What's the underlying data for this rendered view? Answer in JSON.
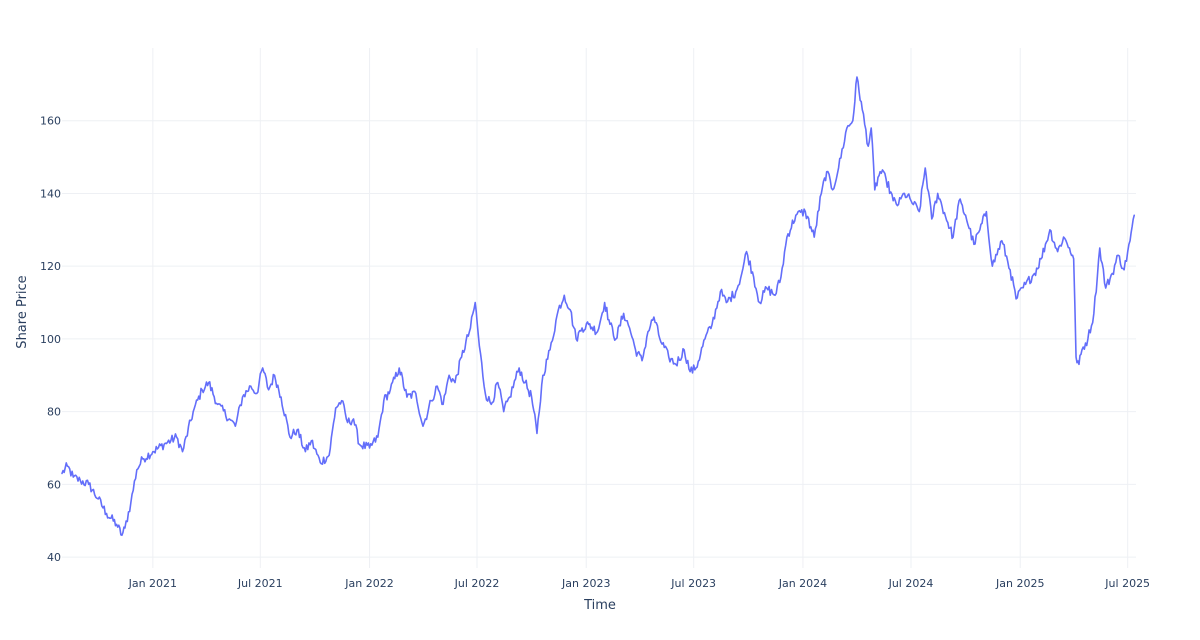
{
  "chart_data": {
    "type": "line",
    "title": "",
    "xlabel": "Time",
    "ylabel": "Share Price",
    "x_range": [
      "2020-08-01",
      "2025-07-15"
    ],
    "ylim": [
      37,
      180
    ],
    "grid": true,
    "legend": "none",
    "x_ticks": [
      {
        "date": "2021-01-01",
        "label": "Jan 2021"
      },
      {
        "date": "2021-07-01",
        "label": "Jul 2021"
      },
      {
        "date": "2022-01-01",
        "label": "Jan 2022"
      },
      {
        "date": "2022-07-01",
        "label": "Jul 2022"
      },
      {
        "date": "2023-01-01",
        "label": "Jan 2023"
      },
      {
        "date": "2023-07-01",
        "label": "Jul 2023"
      },
      {
        "date": "2024-01-01",
        "label": "Jan 2024"
      },
      {
        "date": "2024-07-01",
        "label": "Jul 2024"
      },
      {
        "date": "2025-01-01",
        "label": "Jan 2025"
      },
      {
        "date": "2025-07-01",
        "label": "Jul 2025"
      }
    ],
    "y_ticks": [
      {
        "value": 40,
        "label": "40"
      },
      {
        "value": 60,
        "label": "60"
      },
      {
        "value": 80,
        "label": "80"
      },
      {
        "value": 100,
        "label": "100"
      },
      {
        "value": 120,
        "label": "120"
      },
      {
        "value": 140,
        "label": "140"
      },
      {
        "value": 160,
        "label": "160"
      }
    ],
    "series": [
      {
        "color": "#636efa",
        "points": [
          [
            "2020-08-01",
            63
          ],
          [
            "2020-08-10",
            65
          ],
          [
            "2020-08-20",
            62
          ],
          [
            "2020-09-01",
            61
          ],
          [
            "2020-09-15",
            60
          ],
          [
            "2020-10-01",
            56
          ],
          [
            "2020-10-15",
            52
          ],
          [
            "2020-11-01",
            49
          ],
          [
            "2020-11-10",
            46
          ],
          [
            "2020-11-15",
            48
          ],
          [
            "2020-11-25",
            55
          ],
          [
            "2020-12-05",
            64
          ],
          [
            "2020-12-15",
            67
          ],
          [
            "2021-01-01",
            69
          ],
          [
            "2021-01-20",
            71
          ],
          [
            "2021-02-10",
            73
          ],
          [
            "2021-02-20",
            69
          ],
          [
            "2021-03-10",
            80
          ],
          [
            "2021-03-25",
            86
          ],
          [
            "2021-04-05",
            88
          ],
          [
            "2021-04-20",
            82
          ],
          [
            "2021-05-10",
            78
          ],
          [
            "2021-05-20",
            76
          ],
          [
            "2021-06-01",
            84
          ],
          [
            "2021-06-15",
            87
          ],
          [
            "2021-06-25",
            85
          ],
          [
            "2021-07-05",
            92
          ],
          [
            "2021-07-15",
            86
          ],
          [
            "2021-07-25",
            90
          ],
          [
            "2021-08-05",
            84
          ],
          [
            "2021-08-20",
            73
          ],
          [
            "2021-09-01",
            75
          ],
          [
            "2021-09-15",
            69
          ],
          [
            "2021-09-25",
            72
          ],
          [
            "2021-10-10",
            66
          ],
          [
            "2021-10-25",
            68
          ],
          [
            "2021-11-05",
            81
          ],
          [
            "2021-11-15",
            83
          ],
          [
            "2021-11-25",
            77
          ],
          [
            "2021-12-05",
            78
          ],
          [
            "2021-12-15",
            71
          ],
          [
            "2022-01-01",
            70
          ],
          [
            "2022-01-15",
            73
          ],
          [
            "2022-01-25",
            83
          ],
          [
            "2022-02-05",
            86
          ],
          [
            "2022-02-20",
            92
          ],
          [
            "2022-03-05",
            84
          ],
          [
            "2022-03-20",
            85
          ],
          [
            "2022-04-01",
            76
          ],
          [
            "2022-04-15",
            83
          ],
          [
            "2022-04-25",
            87
          ],
          [
            "2022-05-05",
            82
          ],
          [
            "2022-05-15",
            90
          ],
          [
            "2022-05-25",
            88
          ],
          [
            "2022-06-05",
            95
          ],
          [
            "2022-06-20",
            103
          ],
          [
            "2022-06-28",
            110
          ],
          [
            "2022-07-05",
            98
          ],
          [
            "2022-07-15",
            85
          ],
          [
            "2022-07-25",
            82
          ],
          [
            "2022-08-05",
            88
          ],
          [
            "2022-08-15",
            80
          ],
          [
            "2022-08-25",
            84
          ],
          [
            "2022-09-10",
            92
          ],
          [
            "2022-09-20",
            88
          ],
          [
            "2022-10-01",
            84
          ],
          [
            "2022-10-10",
            74
          ],
          [
            "2022-10-20",
            90
          ],
          [
            "2022-11-01",
            97
          ],
          [
            "2022-11-15",
            108
          ],
          [
            "2022-11-25",
            112
          ],
          [
            "2022-12-05",
            108
          ],
          [
            "2022-12-15",
            100
          ],
          [
            "2022-12-25",
            103
          ],
          [
            "2023-01-05",
            104
          ],
          [
            "2023-01-20",
            102
          ],
          [
            "2023-02-01",
            110
          ],
          [
            "2023-02-10",
            104
          ],
          [
            "2023-02-20",
            100
          ],
          [
            "2023-03-05",
            107
          ],
          [
            "2023-03-15",
            103
          ],
          [
            "2023-03-25",
            97
          ],
          [
            "2023-04-05",
            94
          ],
          [
            "2023-04-15",
            102
          ],
          [
            "2023-04-25",
            106
          ],
          [
            "2023-05-05",
            100
          ],
          [
            "2023-05-20",
            95
          ],
          [
            "2023-06-01",
            93
          ],
          [
            "2023-06-15",
            97
          ],
          [
            "2023-06-25",
            91
          ],
          [
            "2023-07-05",
            92
          ],
          [
            "2023-07-20",
            100
          ],
          [
            "2023-08-01",
            104
          ],
          [
            "2023-08-15",
            113
          ],
          [
            "2023-08-25",
            110
          ],
          [
            "2023-09-10",
            113
          ],
          [
            "2023-09-20",
            118
          ],
          [
            "2023-09-28",
            124
          ],
          [
            "2023-10-10",
            117
          ],
          [
            "2023-10-20",
            110
          ],
          [
            "2023-11-01",
            114
          ],
          [
            "2023-11-15",
            112
          ],
          [
            "2023-11-25",
            117
          ],
          [
            "2023-12-05",
            128
          ],
          [
            "2023-12-20",
            134
          ],
          [
            "2024-01-05",
            135
          ],
          [
            "2024-01-20",
            128
          ],
          [
            "2024-02-01",
            140
          ],
          [
            "2024-02-10",
            146
          ],
          [
            "2024-02-20",
            141
          ],
          [
            "2024-03-01",
            147
          ],
          [
            "2024-03-15",
            158
          ],
          [
            "2024-03-25",
            160
          ],
          [
            "2024-04-01",
            172
          ],
          [
            "2024-04-10",
            163
          ],
          [
            "2024-04-20",
            153
          ],
          [
            "2024-04-25",
            158
          ],
          [
            "2024-05-01",
            141
          ],
          [
            "2024-05-10",
            146
          ],
          [
            "2024-05-20",
            144
          ],
          [
            "2024-06-01",
            138
          ],
          [
            "2024-06-10",
            137
          ],
          [
            "2024-06-20",
            140
          ],
          [
            "2024-07-01",
            138
          ],
          [
            "2024-07-15",
            135
          ],
          [
            "2024-07-25",
            147
          ],
          [
            "2024-08-05",
            133
          ],
          [
            "2024-08-15",
            140
          ],
          [
            "2024-09-01",
            132
          ],
          [
            "2024-09-10",
            128
          ],
          [
            "2024-09-20",
            138
          ],
          [
            "2024-10-01",
            134
          ],
          [
            "2024-10-15",
            126
          ],
          [
            "2024-10-25",
            130
          ],
          [
            "2024-11-05",
            135
          ],
          [
            "2024-11-15",
            120
          ],
          [
            "2024-12-01",
            127
          ],
          [
            "2024-12-15",
            119
          ],
          [
            "2024-12-25",
            111
          ],
          [
            "2025-01-10",
            115
          ],
          [
            "2025-01-25",
            118
          ],
          [
            "2025-02-05",
            122
          ],
          [
            "2025-02-20",
            130
          ],
          [
            "2025-03-05",
            124
          ],
          [
            "2025-03-15",
            128
          ],
          [
            "2025-03-25",
            125
          ],
          [
            "2025-04-01",
            122
          ],
          [
            "2025-04-05",
            95
          ],
          [
            "2025-04-10",
            93
          ],
          [
            "2025-04-15",
            97
          ],
          [
            "2025-04-25",
            100
          ],
          [
            "2025-05-05",
            107
          ],
          [
            "2025-05-15",
            125
          ],
          [
            "2025-05-25",
            114
          ],
          [
            "2025-06-05",
            118
          ],
          [
            "2025-06-15",
            123
          ],
          [
            "2025-06-25",
            119
          ],
          [
            "2025-07-05",
            127
          ],
          [
            "2025-07-12",
            134
          ]
        ]
      }
    ]
  }
}
